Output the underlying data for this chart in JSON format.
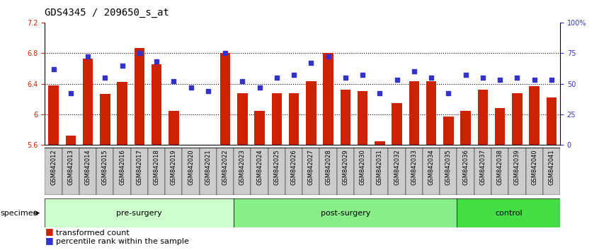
{
  "title": "GDS4345 / 209650_s_at",
  "samples": [
    "GSM842012",
    "GSM842013",
    "GSM842014",
    "GSM842015",
    "GSM842016",
    "GSM842017",
    "GSM842018",
    "GSM842019",
    "GSM842020",
    "GSM842021",
    "GSM842022",
    "GSM842023",
    "GSM842024",
    "GSM842025",
    "GSM842026",
    "GSM842027",
    "GSM842028",
    "GSM842029",
    "GSM842030",
    "GSM842031",
    "GSM842032",
    "GSM842033",
    "GSM842034",
    "GSM842035",
    "GSM842036",
    "GSM842037",
    "GSM842038",
    "GSM842039",
    "GSM842040",
    "GSM842041"
  ],
  "bar_values": [
    6.38,
    5.72,
    6.73,
    6.27,
    6.42,
    6.87,
    6.65,
    6.05,
    5.55,
    5.54,
    6.8,
    6.28,
    6.05,
    6.28,
    6.28,
    6.43,
    6.8,
    6.32,
    6.3,
    5.65,
    6.15,
    6.43,
    6.43,
    5.97,
    6.05,
    6.32,
    6.08,
    6.28,
    6.37,
    6.22
  ],
  "percentile_values": [
    62,
    42,
    72,
    55,
    65,
    75,
    68,
    52,
    47,
    44,
    75,
    52,
    47,
    55,
    57,
    67,
    72,
    55,
    57,
    42,
    53,
    60,
    55,
    42,
    57,
    55,
    53,
    55,
    53,
    53
  ],
  "bar_color": "#cc2200",
  "dot_color": "#3333cc",
  "ylim_left": [
    5.6,
    7.2
  ],
  "ylim_right": [
    0,
    100
  ],
  "yticks_left": [
    5.6,
    6.0,
    6.4,
    6.8,
    7.2
  ],
  "ytick_labels_left": [
    "5.6",
    "6",
    "6.4",
    "6.8",
    "7.2"
  ],
  "yticks_right": [
    0,
    25,
    50,
    75,
    100
  ],
  "ytick_labels_right": [
    "0",
    "25",
    "50",
    "75",
    "100%"
  ],
  "groups": [
    {
      "label": "pre-surgery",
      "start": 0,
      "end": 11,
      "color": "#ccffcc"
    },
    {
      "label": "post-surgery",
      "start": 11,
      "end": 24,
      "color": "#88ee88"
    },
    {
      "label": "control",
      "start": 24,
      "end": 30,
      "color": "#44dd44"
    }
  ],
  "bar_width": 0.6,
  "background_color": "#ffffff",
  "plot_bg_color": "#ffffff",
  "grid_linestyle": "dotted",
  "title_fontsize": 10,
  "tick_fontsize": 7,
  "legend_fontsize": 8,
  "specimen_label": "specimen",
  "left_tick_color": "#cc2200",
  "right_tick_color": "#3333cc",
  "xtick_bg_color": "#cccccc",
  "group_border_color": "#000000"
}
